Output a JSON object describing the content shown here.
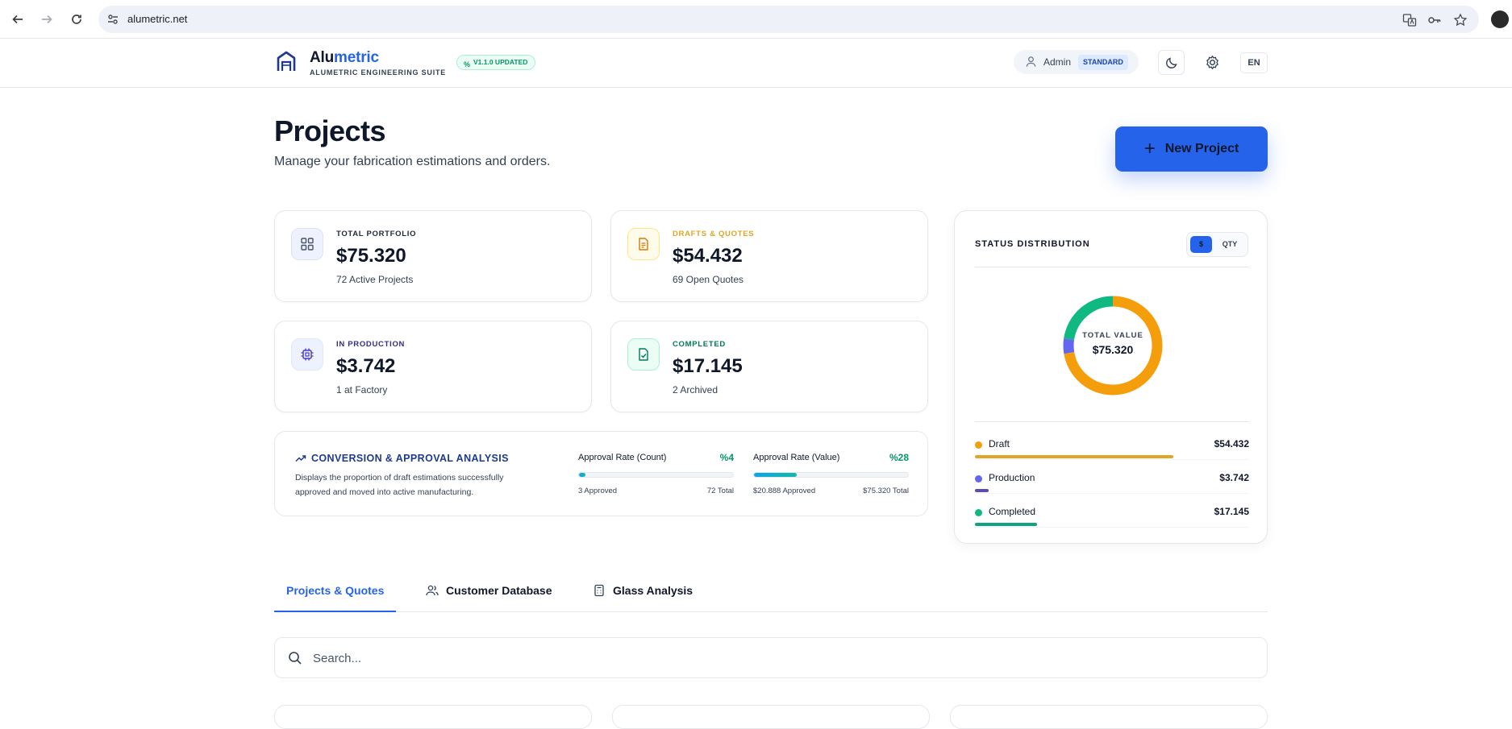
{
  "browser": {
    "url": "alumetric.net"
  },
  "header": {
    "brand_prefix": "Alu",
    "brand_accent": "metric",
    "brand_subtitle": "ALUMETRIC ENGINEERING SUITE",
    "version_badge": "V1.1.0 UPDATED",
    "user_label": "Admin",
    "user_role": "STANDARD",
    "language": "EN"
  },
  "page": {
    "title": "Projects",
    "subtitle": "Manage your fabrication estimations and orders.",
    "new_project_label": "New Project"
  },
  "stats": {
    "portfolio": {
      "kicker": "TOTAL PORTFOLIO",
      "value": "$75.320",
      "sub": "72 Active Projects",
      "color": "#1e293b",
      "icon": "grid-icon"
    },
    "drafts": {
      "kicker": "DRAFTS & QUOTES",
      "value": "$54.432",
      "sub": "69 Open Quotes",
      "color": "#e0a526",
      "icon": "document-icon"
    },
    "production": {
      "kicker": "IN PRODUCTION",
      "value": "$3.742",
      "sub": "1 at Factory",
      "color": "#312e81",
      "icon": "chip-icon"
    },
    "completed": {
      "kicker": "COMPLETED",
      "value": "$17.145",
      "sub": "2 Archived",
      "color": "#047857",
      "icon": "file-check-icon"
    }
  },
  "conversion": {
    "title": "CONVERSION & APPROVAL ANALYSIS",
    "description": "Displays the proportion of draft estimations successfully approved and moved into active manufacturing.",
    "count": {
      "label": "Approval Rate (Count)",
      "pct_text": "%4",
      "fraction": 0.04,
      "left": "3 Approved",
      "right": "72 Total"
    },
    "value": {
      "label": "Approval Rate (Value)",
      "pct_text": "%28",
      "fraction": 0.28,
      "left": "$20.888 Approved",
      "right": "$75.320 Total"
    }
  },
  "status_distribution": {
    "title": "STATUS DISTRIBUTION",
    "toggle_active": "$",
    "toggle_other": "QTY",
    "center_label": "TOTAL VALUE",
    "center_value": "$75.320",
    "items": [
      {
        "name": "Draft",
        "value": "$54.432",
        "amount": 54432,
        "color": "#f59e0b",
        "bar_color": "#e0a526"
      },
      {
        "name": "Production",
        "value": "$3.742",
        "amount": 3742,
        "color": "#6366f1",
        "bar_color": "#5b4cb5"
      },
      {
        "name": "Completed",
        "value": "$17.145",
        "amount": 17145,
        "color": "#10b981",
        "bar_color": "#10a37f"
      }
    ]
  },
  "tabs": [
    {
      "label": "Projects & Quotes",
      "icon": ""
    },
    {
      "label": "Customer Database",
      "icon": "users-icon"
    },
    {
      "label": "Glass Analysis",
      "icon": "calculator-icon"
    }
  ],
  "search": {
    "placeholder": "Search..."
  }
}
